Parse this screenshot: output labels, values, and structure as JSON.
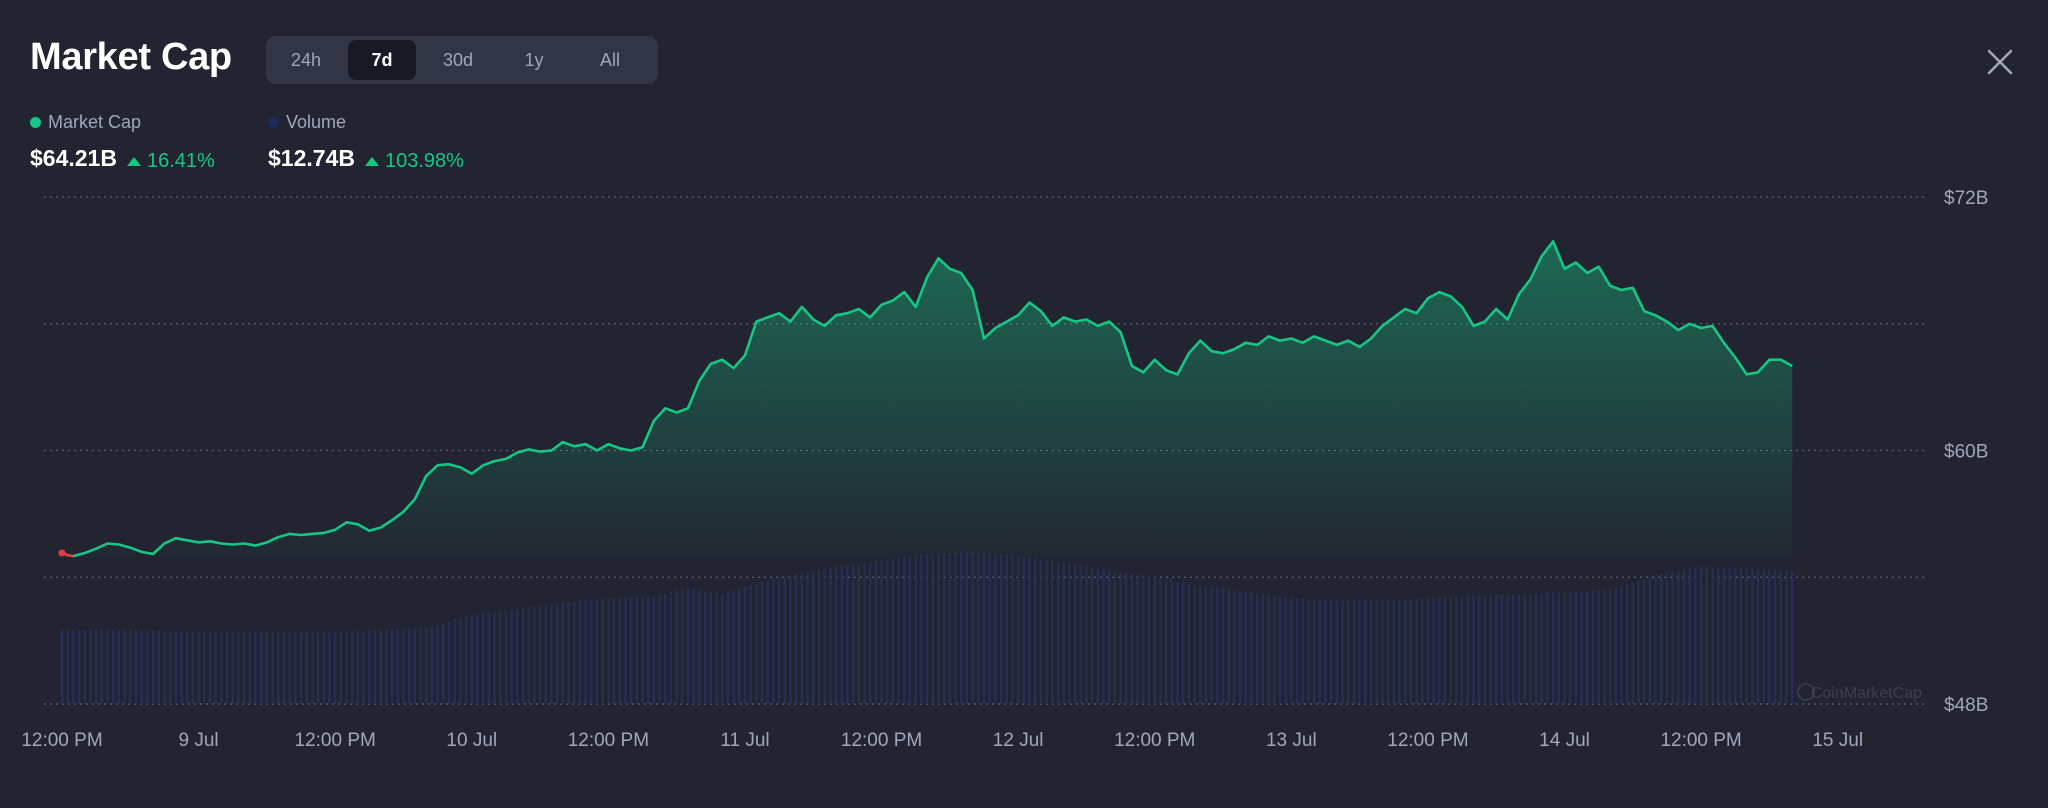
{
  "header": {
    "title": "Market Cap",
    "tabs": [
      {
        "label": "24h",
        "active": false
      },
      {
        "label": "7d",
        "active": true
      },
      {
        "label": "30d",
        "active": false
      },
      {
        "label": "1y",
        "active": false
      },
      {
        "label": "All",
        "active": false
      }
    ]
  },
  "legend": {
    "market_cap": {
      "label": "Market Cap",
      "value": "$64.21B",
      "change": "16.41%",
      "color": "#16c784"
    },
    "volume": {
      "label": "Volume",
      "value": "$12.74B",
      "change": "103.98%",
      "color": "#1e2a5a"
    }
  },
  "colors": {
    "up": "#16c784",
    "down": "#ea3943",
    "background": "#222531",
    "volume_bar": "#27305a"
  },
  "chart_data": {
    "type": "area",
    "ylim": [
      48,
      72
    ],
    "yticks": [
      {
        "value": 72,
        "label": "$72B"
      },
      {
        "value": 60,
        "label": "$60B"
      },
      {
        "value": 48,
        "label": "$48B"
      }
    ],
    "xlim": [
      0,
      162
    ],
    "xticks": [
      {
        "t": 0,
        "label": "12:00 PM"
      },
      {
        "t": 12,
        "label": "9 Jul"
      },
      {
        "t": 24,
        "label": "12:00 PM"
      },
      {
        "t": 36,
        "label": "10 Jul"
      },
      {
        "t": 48,
        "label": "12:00 PM"
      },
      {
        "t": 60,
        "label": "11 Jul"
      },
      {
        "t": 72,
        "label": "12:00 PM"
      },
      {
        "t": 84,
        "label": "12 Jul"
      },
      {
        "t": 96,
        "label": "12:00 PM"
      },
      {
        "t": 108,
        "label": "13 Jul"
      },
      {
        "t": 120,
        "label": "12:00 PM"
      },
      {
        "t": 132,
        "label": "14 Jul"
      },
      {
        "t": 144,
        "label": "12:00 PM"
      },
      {
        "t": 156,
        "label": "15 Jul"
      }
    ],
    "series": [
      {
        "name": "Market Cap",
        "unit": "$B",
        "points": [
          [
            0,
            55.15
          ],
          [
            0.5,
            55.05
          ],
          [
            1,
            55.0
          ],
          [
            2,
            55.15
          ],
          [
            3,
            55.35
          ],
          [
            4,
            55.6
          ],
          [
            5,
            55.55
          ],
          [
            6,
            55.4
          ],
          [
            7,
            55.2
          ],
          [
            8,
            55.1
          ],
          [
            9,
            55.6
          ],
          [
            10,
            55.85
          ],
          [
            11,
            55.75
          ],
          [
            12,
            55.65
          ],
          [
            13,
            55.7
          ],
          [
            14,
            55.6
          ],
          [
            15,
            55.55
          ],
          [
            16,
            55.6
          ],
          [
            17,
            55.5
          ],
          [
            18,
            55.65
          ],
          [
            19,
            55.9
          ],
          [
            20,
            56.05
          ],
          [
            21,
            56.0
          ],
          [
            22,
            56.05
          ],
          [
            23,
            56.1
          ],
          [
            24,
            56.25
          ],
          [
            25,
            56.6
          ],
          [
            26,
            56.5
          ],
          [
            27,
            56.2
          ],
          [
            28,
            56.35
          ],
          [
            29,
            56.7
          ],
          [
            30,
            57.1
          ],
          [
            31,
            57.7
          ],
          [
            32,
            58.8
          ],
          [
            33,
            59.3
          ],
          [
            34,
            59.35
          ],
          [
            35,
            59.2
          ],
          [
            36,
            58.9
          ],
          [
            37,
            59.3
          ],
          [
            38,
            59.5
          ],
          [
            39,
            59.6
          ],
          [
            40,
            59.9
          ],
          [
            41,
            60.05
          ],
          [
            42,
            59.95
          ],
          [
            43,
            60.0
          ],
          [
            44,
            60.4
          ],
          [
            45,
            60.2
          ],
          [
            46,
            60.3
          ],
          [
            47,
            60.0
          ],
          [
            48,
            60.3
          ],
          [
            49,
            60.1
          ],
          [
            50,
            60.0
          ],
          [
            51,
            60.15
          ],
          [
            52,
            61.4
          ],
          [
            53,
            62.0
          ],
          [
            54,
            61.8
          ],
          [
            55,
            62.0
          ],
          [
            56,
            63.3
          ],
          [
            57,
            64.1
          ],
          [
            58,
            64.3
          ],
          [
            59,
            63.9
          ],
          [
            60,
            64.5
          ],
          [
            61,
            66.1
          ],
          [
            62,
            66.3
          ],
          [
            63,
            66.5
          ],
          [
            64,
            66.1
          ],
          [
            65,
            66.8
          ],
          [
            66,
            66.2
          ],
          [
            67,
            65.9
          ],
          [
            68,
            66.4
          ],
          [
            69,
            66.5
          ],
          [
            70,
            66.7
          ],
          [
            71,
            66.3
          ],
          [
            72,
            66.9
          ],
          [
            73,
            67.1
          ],
          [
            74,
            67.5
          ],
          [
            75,
            66.8
          ],
          [
            76,
            68.2
          ],
          [
            77,
            69.1
          ],
          [
            78,
            68.6
          ],
          [
            79,
            68.4
          ],
          [
            80,
            67.6
          ],
          [
            81,
            65.3
          ],
          [
            82,
            65.8
          ],
          [
            83,
            66.1
          ],
          [
            84,
            66.4
          ],
          [
            85,
            67.0
          ],
          [
            86,
            66.6
          ],
          [
            87,
            65.9
          ],
          [
            88,
            66.3
          ],
          [
            89,
            66.1
          ],
          [
            90,
            66.2
          ],
          [
            91,
            65.9
          ],
          [
            92,
            66.1
          ],
          [
            93,
            65.6
          ],
          [
            94,
            64.0
          ],
          [
            95,
            63.7
          ],
          [
            96,
            64.3
          ],
          [
            97,
            63.8
          ],
          [
            98,
            63.6
          ],
          [
            99,
            64.6
          ],
          [
            100,
            65.2
          ],
          [
            101,
            64.7
          ],
          [
            102,
            64.6
          ],
          [
            103,
            64.8
          ],
          [
            104,
            65.1
          ],
          [
            105,
            65.0
          ],
          [
            106,
            65.4
          ],
          [
            107,
            65.2
          ],
          [
            108,
            65.3
          ],
          [
            109,
            65.1
          ],
          [
            110,
            65.4
          ],
          [
            111,
            65.2
          ],
          [
            112,
            65.0
          ],
          [
            113,
            65.2
          ],
          [
            114,
            64.9
          ],
          [
            115,
            65.3
          ],
          [
            116,
            65.9
          ],
          [
            117,
            66.3
          ],
          [
            118,
            66.7
          ],
          [
            119,
            66.5
          ],
          [
            120,
            67.2
          ],
          [
            121,
            67.5
          ],
          [
            122,
            67.3
          ],
          [
            123,
            66.8
          ],
          [
            124,
            65.9
          ],
          [
            125,
            66.1
          ],
          [
            126,
            66.7
          ],
          [
            127,
            66.2
          ],
          [
            128,
            67.4
          ],
          [
            129,
            68.1
          ],
          [
            130,
            69.2
          ],
          [
            131,
            69.9
          ],
          [
            132,
            68.6
          ],
          [
            133,
            68.9
          ],
          [
            134,
            68.4
          ],
          [
            135,
            68.7
          ],
          [
            136,
            67.8
          ],
          [
            137,
            67.6
          ],
          [
            138,
            67.7
          ],
          [
            139,
            66.6
          ],
          [
            140,
            66.4
          ],
          [
            141,
            66.1
          ],
          [
            142,
            65.7
          ],
          [
            143,
            66.0
          ],
          [
            144,
            65.8
          ],
          [
            145,
            65.9
          ],
          [
            146,
            65.1
          ],
          [
            147,
            64.4
          ],
          [
            148,
            63.6
          ],
          [
            149,
            63.7
          ],
          [
            150,
            64.3
          ],
          [
            151,
            64.3
          ],
          [
            152,
            64.0
          ]
        ]
      },
      {
        "name": "Volume",
        "unit": "$B",
        "points": [
          [
            0,
            51.5
          ],
          [
            6,
            51.5
          ],
          [
            12,
            51.4
          ],
          [
            18,
            51.4
          ],
          [
            24,
            51.4
          ],
          [
            28,
            51.5
          ],
          [
            32,
            51.6
          ],
          [
            36,
            52.2
          ],
          [
            40,
            52.5
          ],
          [
            44,
            52.8
          ],
          [
            48,
            53.0
          ],
          [
            52,
            53.1
          ],
          [
            55,
            53.5
          ],
          [
            58,
            53.2
          ],
          [
            61,
            53.7
          ],
          [
            64,
            54.1
          ],
          [
            68,
            54.5
          ],
          [
            72,
            54.8
          ],
          [
            76,
            55.1
          ],
          [
            80,
            55.2
          ],
          [
            84,
            55.0
          ],
          [
            88,
            54.7
          ],
          [
            92,
            54.3
          ],
          [
            96,
            54.0
          ],
          [
            100,
            53.6
          ],
          [
            104,
            53.3
          ],
          [
            108,
            53.0
          ],
          [
            112,
            52.9
          ],
          [
            116,
            52.9
          ],
          [
            120,
            53.0
          ],
          [
            124,
            53.1
          ],
          [
            128,
            53.2
          ],
          [
            132,
            53.3
          ],
          [
            136,
            53.4
          ],
          [
            140,
            54.1
          ],
          [
            144,
            54.5
          ],
          [
            148,
            54.4
          ],
          [
            152,
            54.3
          ],
          [
            156,
            54.4
          ],
          [
            160,
            54.2
          ],
          [
            162,
            54.1
          ]
        ]
      }
    ],
    "watermark": "CoinMarketCap"
  }
}
